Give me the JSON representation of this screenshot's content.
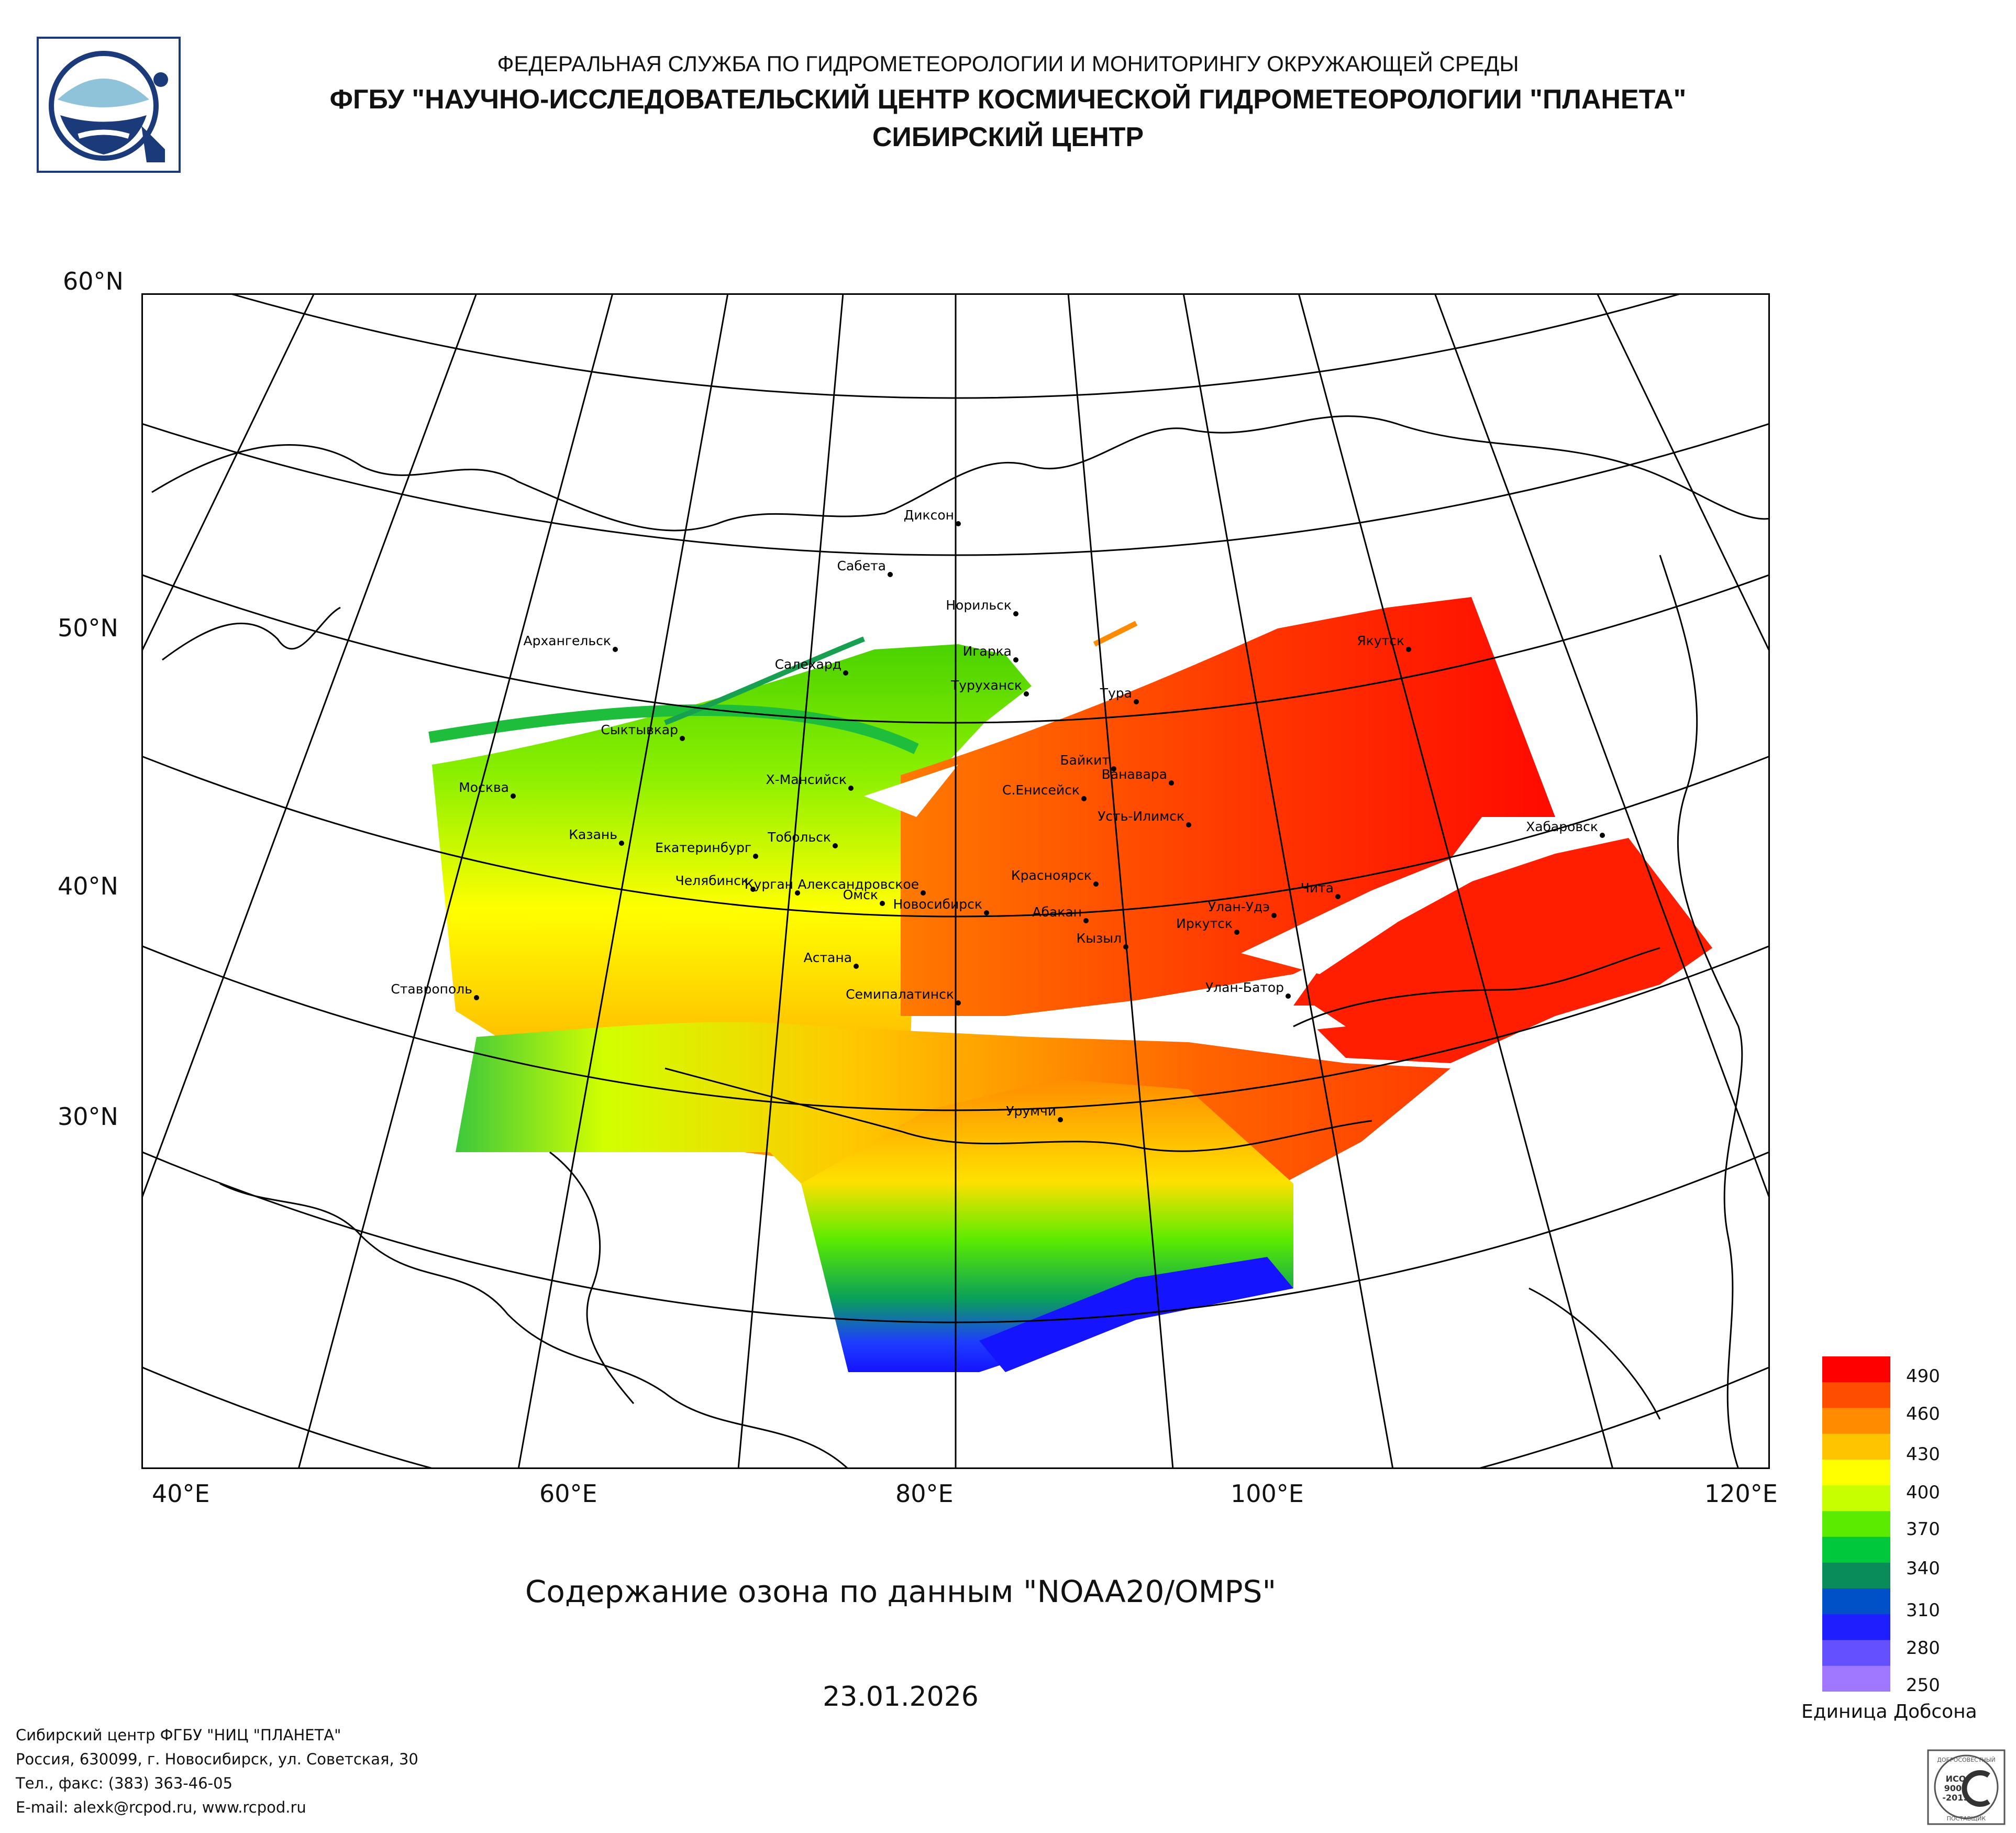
{
  "header": {
    "line1": "ФЕДЕРАЛЬНАЯ СЛУЖБА ПО ГИДРОМЕТЕОРОЛОГИИ И МОНИТОРИНГУ ОКРУЖАЮЩЕЙ СРЕДЫ",
    "line2": "ФГБУ \"НАУЧНО-ИССЛЕДОВАТЕЛЬСКИЙ ЦЕНТР КОСМИЧЕСКОЙ ГИДРОМЕТЕОРОЛОГИИ \"ПЛАНЕТА\"",
    "line3": "СИБИРСКИЙ ЦЕНТР"
  },
  "axes": {
    "lat_labels": [
      "60°N",
      "50°N",
      "40°N",
      "30°N"
    ],
    "lon_labels": [
      "40°E",
      "60°E",
      "80°E",
      "100°E",
      "120°E"
    ]
  },
  "cities": [
    {
      "name": "Диксон"
    },
    {
      "name": "Сабета"
    },
    {
      "name": "Норильск"
    },
    {
      "name": "Архангельск"
    },
    {
      "name": "Салехард"
    },
    {
      "name": "Игарка"
    },
    {
      "name": "Туруханск"
    },
    {
      "name": "Якутск"
    },
    {
      "name": "Тура"
    },
    {
      "name": "Сыктывкар"
    },
    {
      "name": "Байкит"
    },
    {
      "name": "Ванавара"
    },
    {
      "name": "Москва"
    },
    {
      "name": "Х-Мансийск"
    },
    {
      "name": "С.Енисейск"
    },
    {
      "name": "Усть-Илимск"
    },
    {
      "name": "Хабаровск"
    },
    {
      "name": "Казань"
    },
    {
      "name": "Тобольск"
    },
    {
      "name": "Екатеринбург"
    },
    {
      "name": "Красноярск"
    },
    {
      "name": "Чита"
    },
    {
      "name": "Челябинск"
    },
    {
      "name": "Александровское"
    },
    {
      "name": "Курган"
    },
    {
      "name": "Омск"
    },
    {
      "name": "Новосибирск"
    },
    {
      "name": "Улан-Удэ"
    },
    {
      "name": "Абакан"
    },
    {
      "name": "Иркутск"
    },
    {
      "name": "Кызыл"
    },
    {
      "name": "Астана"
    },
    {
      "name": "Ставрополь"
    },
    {
      "name": "Семипалатинск"
    },
    {
      "name": "Улан-Батор"
    },
    {
      "name": "Урумчи"
    }
  ],
  "legend": {
    "labels": [
      "490",
      "460",
      "430",
      "400",
      "370",
      "340",
      "310",
      "280",
      "250"
    ],
    "unit": "Единица Добсона",
    "colors": [
      "#ff0000",
      "#ff4d00",
      "#ff8c00",
      "#ffc400",
      "#ffff00",
      "#c8ff00",
      "#5aeb00",
      "#00c83c",
      "#0a8c5a",
      "#0050c8",
      "#1e1eff",
      "#6450ff",
      "#a078ff"
    ]
  },
  "caption": {
    "title": "Содержание озона по данным \"NOAA20/OMPS\"",
    "date": "23.01.2026"
  },
  "footer": {
    "line1": "Сибирский центр ФГБУ \"НИЦ \"ПЛАНЕТА\"",
    "line2": "Россия, 630099, г. Новосибирск, ул. Советская, 30",
    "line3": "Тел., факс: (383) 363-46-05",
    "line4": "E-mail: alexk@rcpod.ru, www.rcpod.ru"
  },
  "iso_badge": {
    "top": "ДОБРОСОВЕСТНЫЙ",
    "mid1": "ИСО",
    "mid2": "9001",
    "mid3": "-2015",
    "bottom": "ПОСТАВЩИК"
  }
}
